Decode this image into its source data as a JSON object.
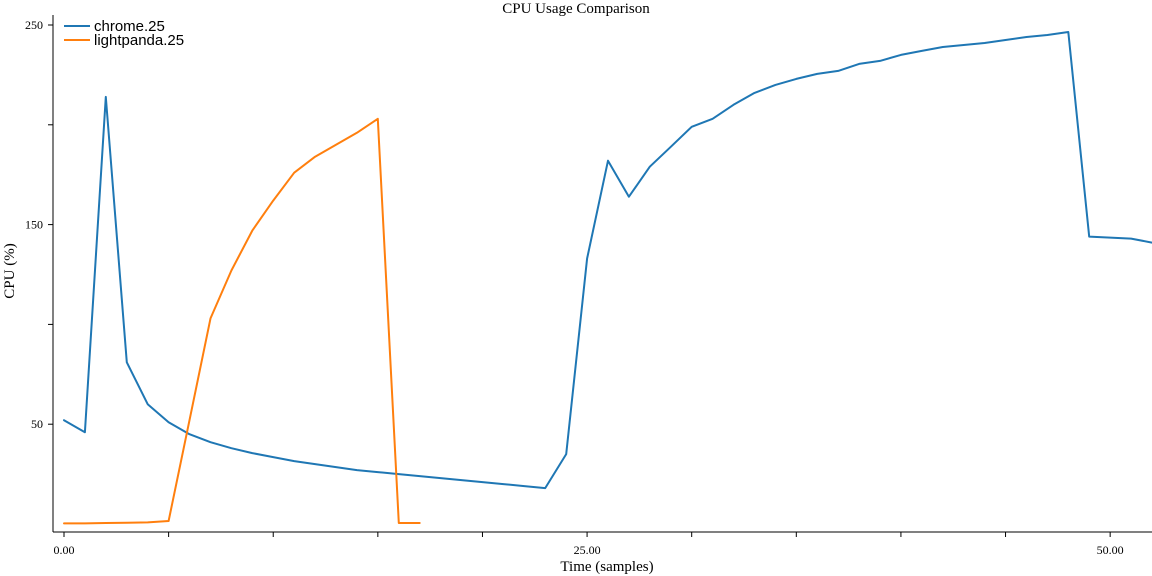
{
  "chart_data": {
    "type": "line",
    "title": "CPU Usage Comparison",
    "xlabel": "Time (samples)",
    "ylabel": "CPU (%)",
    "xlim": [
      0,
      52
    ],
    "ylim": [
      0,
      250
    ],
    "x_ticks": [
      0,
      5,
      10,
      15,
      20,
      25,
      30,
      35,
      40,
      45,
      50
    ],
    "x_tick_labels": [
      "0.00",
      "",
      "",
      "",
      "",
      "25.00",
      "",
      "",
      "",
      "",
      "50.00"
    ],
    "y_ticks": [
      50,
      100,
      150,
      200,
      250
    ],
    "y_tick_labels": [
      "50",
      "",
      "150",
      "",
      "250"
    ],
    "grid": false,
    "legend_position": "top-left",
    "series": [
      {
        "name": "chrome.25",
        "color": "#1f77b4",
        "x": [
          0,
          1,
          2,
          3,
          4,
          5,
          6,
          7,
          8,
          9,
          10,
          11,
          12,
          13,
          14,
          15,
          16,
          17,
          18,
          19,
          20,
          21,
          22,
          23,
          24,
          25,
          26,
          27,
          28,
          29,
          30,
          31,
          32,
          33,
          34,
          35,
          36,
          37,
          38,
          39,
          40,
          41,
          42,
          43,
          44,
          45,
          46,
          47,
          48,
          49,
          50,
          51,
          52
        ],
        "y": [
          52,
          46,
          214,
          81,
          60,
          51,
          45,
          41,
          38,
          35.5,
          33.5,
          31.5,
          30,
          28.5,
          27,
          26,
          25,
          24,
          23,
          22,
          21,
          20,
          19,
          18,
          35,
          133,
          182,
          164,
          179,
          189,
          199,
          203,
          210,
          216,
          220,
          223,
          225.5,
          227,
          230.5,
          232,
          235,
          237,
          239,
          240,
          241,
          242.5,
          244,
          245,
          246.5,
          144,
          143.5,
          143,
          141
        ]
      },
      {
        "name": "lightpanda.25",
        "color": "#ff7f0e",
        "x": [
          0,
          1,
          2,
          3,
          4,
          5,
          6,
          7,
          8,
          9,
          10,
          11,
          12,
          13,
          14,
          15,
          16,
          17
        ],
        "y": [
          0.3,
          0.3,
          0.5,
          0.6,
          0.8,
          1.5,
          52,
          103,
          127,
          147,
          162,
          176,
          184,
          190,
          196,
          203,
          0.5,
          0.5
        ]
      }
    ]
  }
}
